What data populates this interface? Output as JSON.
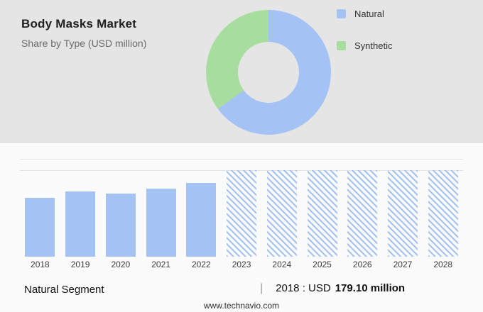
{
  "header": {
    "title": "Body Masks Market",
    "subtitle": "Share by Type (USD million)"
  },
  "donut": {
    "segments": [
      {
        "label": "Natural",
        "share_percent": 65,
        "color": "#a4c2f4"
      },
      {
        "label": "Synthetic",
        "share_percent": 35,
        "color": "#a7dd9e"
      }
    ]
  },
  "chart_data": {
    "type": "bar",
    "title": "Body Masks Market — Share by Type (USD million)",
    "ylabel": "USD million",
    "categories": [
      "2018",
      "2019",
      "2020",
      "2021",
      "2022",
      "2023",
      "2024",
      "2025",
      "2026",
      "2027",
      "2028"
    ],
    "series": [
      {
        "name": "Natural",
        "values": [
          179.1,
          198.5,
          192.0,
          207.0,
          224.5,
          263.0,
          263.0,
          263.0,
          263.0,
          263.0,
          263.0
        ]
      }
    ],
    "known_values": {
      "2018": "USD 179.10 million"
    },
    "forecast_start": "2023",
    "bar_color": "#a4c2f4",
    "grid": true,
    "legend_position": "top-right"
  },
  "footer": {
    "segment_label": "Natural Segment",
    "separator": "|",
    "value_prefix": "2018 : USD",
    "value_bold": "179.10 million",
    "website": "www.technavio.com"
  }
}
